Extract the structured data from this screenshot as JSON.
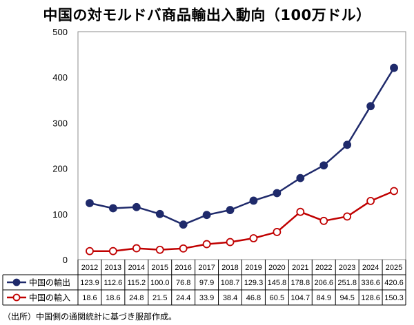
{
  "chart_data": {
    "type": "line",
    "title": "中国の対モルドバ商品輸出入動向（100万ドル）",
    "x": [
      "2012",
      "2013",
      "2014",
      "2015",
      "2016",
      "2017",
      "2018",
      "2019",
      "2020",
      "2021",
      "2022",
      "2023",
      "2024",
      "2025"
    ],
    "series": [
      {
        "name": "中国の輸出",
        "color": "#1f2a6b",
        "marker": "filled",
        "values": [
          123.9,
          112.6,
          115.2,
          100.0,
          76.8,
          97.9,
          108.7,
          129.3,
          145.8,
          178.8,
          206.6,
          251.8,
          336.6,
          420.6
        ],
        "labels": [
          "123.9",
          "112.6",
          "115.2",
          "100.0",
          "76.8",
          "97.9",
          "108.7",
          "129.3",
          "145.8",
          "178.8",
          "206.6",
          "251.8",
          "336.6",
          "420.6"
        ]
      },
      {
        "name": "中国の輸入",
        "color": "#c00000",
        "marker": "hollow",
        "values": [
          18.6,
          18.6,
          24.8,
          21.5,
          24.4,
          33.9,
          38.4,
          46.8,
          60.5,
          104.7,
          84.9,
          94.5,
          128.6,
          150.3
        ],
        "labels": [
          "18.6",
          "18.6",
          "24.8",
          "21.5",
          "24.4",
          "33.9",
          "38.4",
          "46.8",
          "60.5",
          "104.7",
          "84.9",
          "94.5",
          "128.6",
          "150.3"
        ]
      }
    ],
    "ylim": [
      0,
      500
    ],
    "yticks": [
      "0",
      "100",
      "200",
      "300",
      "400",
      "500"
    ],
    "grid": false,
    "legend": "data-table-below"
  },
  "source_note": "（出所）中国側の通関統計に基づき服部作成。"
}
